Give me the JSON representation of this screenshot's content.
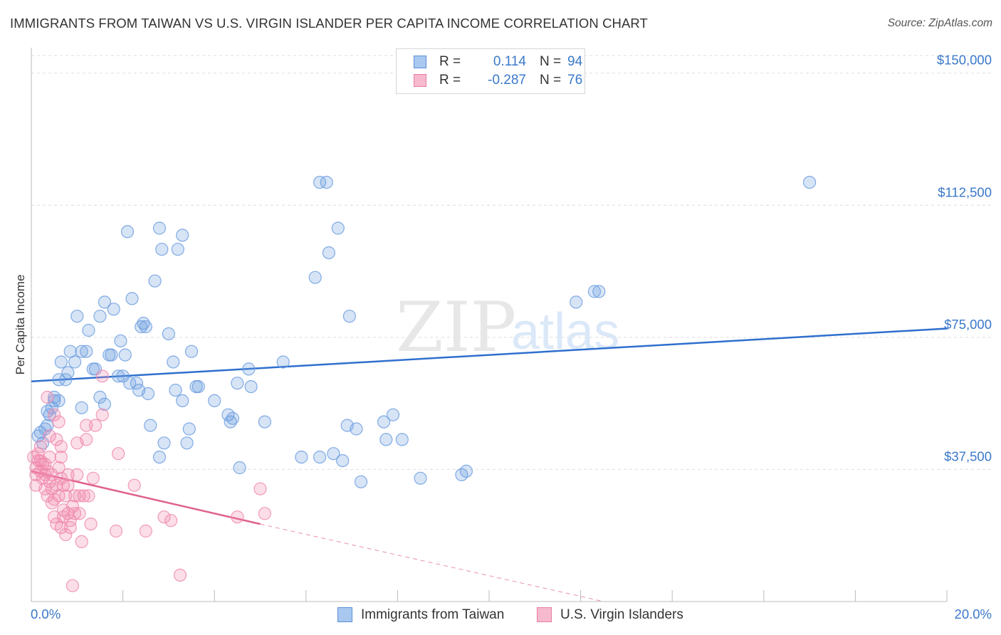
{
  "title": "IMMIGRANTS FROM TAIWAN VS U.S. VIRGIN ISLANDER PER CAPITA INCOME CORRELATION CHART",
  "source": "Source: ZipAtlas.com",
  "watermark": {
    "zip": "ZIP",
    "atlas": "atlas"
  },
  "legend": {
    "rows": [
      {
        "r_label": "R =",
        "r_value": "0.114",
        "n_label": "N =",
        "n_value": "94",
        "color": "#a9c8f0",
        "stroke": "#5b8fd6"
      },
      {
        "r_label": "R =",
        "r_value": "-0.287",
        "n_label": "N =",
        "n_value": "76",
        "color": "#f6b9cd",
        "stroke": "#e87fa2"
      }
    ]
  },
  "bottom_legend": [
    {
      "label": "Immigrants from Taiwan",
      "color": "#a9c8f0",
      "stroke": "#5b8fd6"
    },
    {
      "label": "U.S. Virgin Islanders",
      "color": "#f6b9cd",
      "stroke": "#e87fa2"
    }
  ],
  "chart_data": {
    "type": "scatter",
    "title": "IMMIGRANTS FROM TAIWAN VS U.S. VIRGIN ISLANDER PER CAPITA INCOME CORRELATION CHART",
    "xlabel": "",
    "ylabel": "Per Capita Income",
    "xlim": [
      0,
      20
    ],
    "ylim": [
      0,
      155000
    ],
    "x_tick_labels": [
      "0.0%",
      "20.0%"
    ],
    "y_ticks": [
      37500,
      75000,
      112500,
      150000
    ],
    "y_tick_labels": [
      "$37,500",
      "$75,000",
      "$112,500",
      "$150,000"
    ],
    "grid": true,
    "series": [
      {
        "name": "Immigrants from Taiwan",
        "color": "#6d9ee0",
        "line_color": "#2f6fce",
        "r": 0.114,
        "n": 94,
        "trend": {
          "x": [
            0,
            20
          ],
          "y": [
            62500,
            77500
          ]
        },
        "points": [
          [
            0.15,
            47000
          ],
          [
            0.2,
            48000
          ],
          [
            0.25,
            45000
          ],
          [
            0.3,
            49000
          ],
          [
            0.35,
            50000
          ],
          [
            0.35,
            54000
          ],
          [
            0.4,
            53000
          ],
          [
            0.45,
            55000
          ],
          [
            0.5,
            57000
          ],
          [
            0.5,
            58000
          ],
          [
            0.6,
            57000
          ],
          [
            0.6,
            63000
          ],
          [
            0.65,
            68000
          ],
          [
            0.75,
            63000
          ],
          [
            0.8,
            65000
          ],
          [
            0.85,
            71000
          ],
          [
            0.95,
            68000
          ],
          [
            1.0,
            81000
          ],
          [
            1.1,
            55000
          ],
          [
            1.1,
            71000
          ],
          [
            1.2,
            71000
          ],
          [
            1.25,
            77000
          ],
          [
            1.35,
            66000
          ],
          [
            1.4,
            66000
          ],
          [
            1.5,
            58000
          ],
          [
            1.5,
            81000
          ],
          [
            1.6,
            56000
          ],
          [
            1.6,
            85000
          ],
          [
            1.7,
            70000
          ],
          [
            1.75,
            70000
          ],
          [
            1.8,
            83000
          ],
          [
            1.9,
            64000
          ],
          [
            1.95,
            74000
          ],
          [
            2.0,
            64000
          ],
          [
            2.05,
            70000
          ],
          [
            2.1,
            105000
          ],
          [
            2.15,
            62000
          ],
          [
            2.2,
            86000
          ],
          [
            2.3,
            62000
          ],
          [
            2.35,
            60000
          ],
          [
            2.4,
            78000
          ],
          [
            2.45,
            79000
          ],
          [
            2.5,
            78000
          ],
          [
            2.55,
            59000
          ],
          [
            2.6,
            50000
          ],
          [
            2.7,
            91000
          ],
          [
            2.8,
            41000
          ],
          [
            2.8,
            106000
          ],
          [
            2.85,
            100000
          ],
          [
            2.9,
            45000
          ],
          [
            3.0,
            76000
          ],
          [
            3.1,
            68000
          ],
          [
            3.15,
            60000
          ],
          [
            3.2,
            100000
          ],
          [
            3.3,
            104000
          ],
          [
            3.3,
            57000
          ],
          [
            3.4,
            45000
          ],
          [
            3.45,
            49000
          ],
          [
            3.5,
            71000
          ],
          [
            3.6,
            61000
          ],
          [
            3.65,
            61000
          ],
          [
            4.0,
            57000
          ],
          [
            4.3,
            53000
          ],
          [
            4.35,
            51000
          ],
          [
            4.4,
            52000
          ],
          [
            4.5,
            62000
          ],
          [
            4.55,
            38000
          ],
          [
            4.75,
            66000
          ],
          [
            4.8,
            61000
          ],
          [
            5.1,
            51000
          ],
          [
            5.5,
            68000
          ],
          [
            5.9,
            41000
          ],
          [
            6.2,
            92000
          ],
          [
            6.3,
            41000
          ],
          [
            6.3,
            119000
          ],
          [
            6.45,
            119000
          ],
          [
            6.5,
            99000
          ],
          [
            6.6,
            42000
          ],
          [
            6.7,
            106000
          ],
          [
            6.8,
            40000
          ],
          [
            6.9,
            50000
          ],
          [
            6.95,
            81000
          ],
          [
            7.1,
            49000
          ],
          [
            7.2,
            34000
          ],
          [
            7.7,
            51000
          ],
          [
            7.75,
            46000
          ],
          [
            7.9,
            53000
          ],
          [
            8.1,
            46000
          ],
          [
            8.5,
            35000
          ],
          [
            9.4,
            36000
          ],
          [
            9.5,
            37000
          ],
          [
            11.9,
            85000
          ],
          [
            12.3,
            88000
          ],
          [
            12.4,
            88000
          ],
          [
            17.0,
            119000
          ]
        ]
      },
      {
        "name": "U.S. Virgin Islanders",
        "color": "#f08aae",
        "line_color": "#e0608e",
        "r": -0.287,
        "n": 76,
        "trend": {
          "x": [
            0,
            5.0
          ],
          "y": [
            37000,
            22000
          ]
        },
        "trend_dashed": {
          "x": [
            5.0,
            12.5
          ],
          "y": [
            22000,
            0
          ]
        },
        "points": [
          [
            0.05,
            41000
          ],
          [
            0.1,
            36000
          ],
          [
            0.1,
            33000
          ],
          [
            0.1,
            38000
          ],
          [
            0.15,
            40000
          ],
          [
            0.15,
            42000
          ],
          [
            0.2,
            37000
          ],
          [
            0.2,
            40000
          ],
          [
            0.2,
            44000
          ],
          [
            0.25,
            35000
          ],
          [
            0.25,
            39000
          ],
          [
            0.3,
            36000
          ],
          [
            0.3,
            39000
          ],
          [
            0.3,
            32000
          ],
          [
            0.35,
            37000
          ],
          [
            0.35,
            30000
          ],
          [
            0.35,
            58000
          ],
          [
            0.4,
            34000
          ],
          [
            0.4,
            41000
          ],
          [
            0.4,
            47000
          ],
          [
            0.45,
            36000
          ],
          [
            0.45,
            32000
          ],
          [
            0.45,
            28000
          ],
          [
            0.5,
            29000
          ],
          [
            0.5,
            24000
          ],
          [
            0.5,
            53000
          ],
          [
            0.55,
            33000
          ],
          [
            0.55,
            22000
          ],
          [
            0.55,
            46000
          ],
          [
            0.6,
            38000
          ],
          [
            0.6,
            30000
          ],
          [
            0.6,
            51000
          ],
          [
            0.65,
            35000
          ],
          [
            0.65,
            41000
          ],
          [
            0.65,
            44000
          ],
          [
            0.65,
            21000
          ],
          [
            0.7,
            33000
          ],
          [
            0.7,
            26000
          ],
          [
            0.7,
            24000
          ],
          [
            0.75,
            30000
          ],
          [
            0.75,
            19000
          ],
          [
            0.8,
            33000
          ],
          [
            0.8,
            25000
          ],
          [
            0.8,
            36000
          ],
          [
            0.85,
            21000
          ],
          [
            0.85,
            23000
          ],
          [
            0.9,
            27000
          ],
          [
            0.9,
            4500
          ],
          [
            0.95,
            25000
          ],
          [
            0.95,
            30000
          ],
          [
            1.0,
            36000
          ],
          [
            1.0,
            45000
          ],
          [
            1.05,
            25000
          ],
          [
            1.05,
            30000
          ],
          [
            1.1,
            17000
          ],
          [
            1.15,
            30000
          ],
          [
            1.2,
            46000
          ],
          [
            1.2,
            50000
          ],
          [
            1.25,
            30000
          ],
          [
            1.3,
            22000
          ],
          [
            1.35,
            35000
          ],
          [
            1.4,
            50000
          ],
          [
            1.55,
            64000
          ],
          [
            1.55,
            53000
          ],
          [
            1.85,
            20000
          ],
          [
            1.9,
            42000
          ],
          [
            2.25,
            33000
          ],
          [
            2.5,
            20000
          ],
          [
            2.9,
            24000
          ],
          [
            3.05,
            23000
          ],
          [
            3.25,
            7500
          ],
          [
            4.5,
            24000
          ],
          [
            5.0,
            32000
          ],
          [
            5.1,
            25000
          ]
        ]
      }
    ]
  }
}
